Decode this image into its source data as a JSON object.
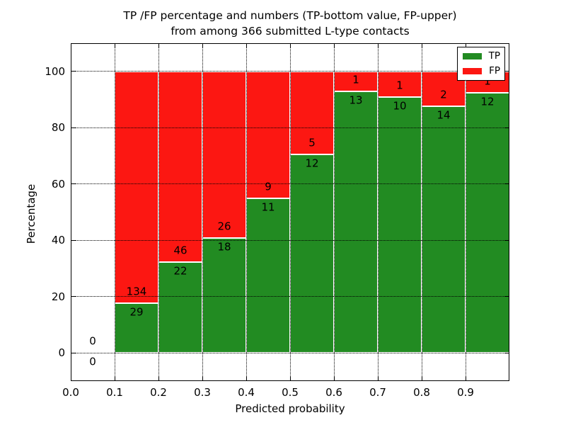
{
  "title": {
    "line1": "TP /FP percentage and numbers (TP-bottom value, FP-upper)",
    "line2": "from among 366 submitted L-type contacts"
  },
  "axes": {
    "xlabel": "Predicted probability",
    "ylabel": "Percentage",
    "x_tick_labels": [
      "0.0",
      "0.1",
      "0.2",
      "0.3",
      "0.4",
      "0.5",
      "0.6",
      "0.7",
      "0.8",
      "0.9"
    ],
    "y_tick_labels": [
      "0",
      "20",
      "40",
      "60",
      "80",
      "100"
    ],
    "y_tick_values": [
      0,
      20,
      40,
      60,
      80,
      100
    ],
    "xlim": [
      0.0,
      1.0
    ],
    "ylim": [
      -10,
      110
    ],
    "grid_style": "dotted black, both axes"
  },
  "legend": {
    "position": "upper right",
    "entries": [
      {
        "label": "TP",
        "color_key": "tp"
      },
      {
        "label": "FP",
        "color_key": "fp"
      }
    ]
  },
  "colors": {
    "tp": "#228b22",
    "fp": "#fc1712",
    "bar_edge": "#ffffff",
    "grid": "#000000",
    "text": "#000000",
    "background": "#ffffff"
  },
  "chart_data": {
    "type": "bar",
    "stacked": true,
    "normalization": "each bin scaled so TP%+FP% = 100; labels show raw counts (TP bottom, FP upper)",
    "title": "TP /FP percentage and numbers (TP-bottom value, FP-upper)\nfrom among 366 submitted L-type contacts",
    "xlabel": "Predicted probability",
    "ylabel": "Percentage",
    "xlim": [
      0.0,
      1.0
    ],
    "ylim": [
      -10,
      110
    ],
    "grid": true,
    "legend_position": "upper right",
    "total_contacts": 366,
    "series": [
      {
        "name": "TP",
        "counts": [
          0,
          29,
          22,
          18,
          11,
          12,
          13,
          10,
          14,
          12
        ]
      },
      {
        "name": "FP",
        "counts": [
          0,
          134,
          46,
          26,
          9,
          5,
          1,
          1,
          2,
          1
        ]
      }
    ],
    "bins": [
      {
        "range": [
          0.0,
          0.1
        ],
        "tp": 0,
        "fp": 0
      },
      {
        "range": [
          0.1,
          0.2
        ],
        "tp": 29,
        "fp": 134
      },
      {
        "range": [
          0.2,
          0.3
        ],
        "tp": 22,
        "fp": 46
      },
      {
        "range": [
          0.3,
          0.4
        ],
        "tp": 18,
        "fp": 26
      },
      {
        "range": [
          0.4,
          0.5
        ],
        "tp": 11,
        "fp": 9
      },
      {
        "range": [
          0.5,
          0.6
        ],
        "tp": 12,
        "fp": 5
      },
      {
        "range": [
          0.6,
          0.7
        ],
        "tp": 13,
        "fp": 1
      },
      {
        "range": [
          0.7,
          0.8
        ],
        "tp": 10,
        "fp": 1
      },
      {
        "range": [
          0.8,
          0.9
        ],
        "tp": 14,
        "fp": 2
      },
      {
        "range": [
          0.9,
          1.0
        ],
        "tp": 12,
        "fp": 1
      }
    ]
  }
}
